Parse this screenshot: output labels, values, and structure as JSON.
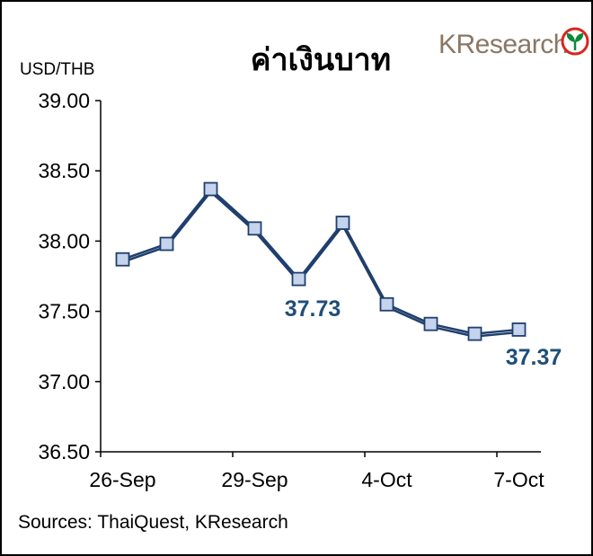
{
  "chart_data": {
    "type": "line",
    "title": "ค่าเงินบาท",
    "ylabel": "USD/THB",
    "ylim": [
      36.5,
      39.0
    ],
    "yticks": [
      "39.00",
      "38.50",
      "38.00",
      "37.50",
      "37.00",
      "36.50"
    ],
    "xtick_labels": [
      "26-Sep",
      "29-Sep",
      "4-Oct",
      "7-Oct"
    ],
    "series": [
      {
        "values": [
          37.87,
          37.98,
          38.37,
          38.09,
          37.73,
          38.13,
          37.55,
          37.41,
          37.34,
          37.37
        ]
      }
    ],
    "annotations": [
      "37.73",
      "37.37"
    ],
    "grid": false,
    "colors": {
      "line": "#1f3f6e",
      "marker_fill": "#c5d4ec",
      "marker_edge": "#1f3f6e",
      "callout": "#1f4e79"
    }
  },
  "source": "Sources: ThaiQuest, KResearch",
  "logo": {
    "text": "KResearch",
    "icon": "kbank-leaf-icon"
  }
}
